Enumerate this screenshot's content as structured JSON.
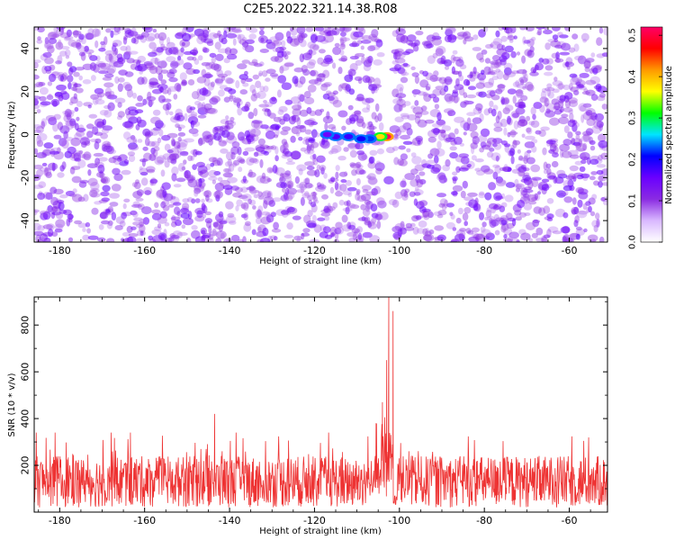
{
  "chart_data": [
    {
      "type": "heatmap",
      "title": "C2E5.2022.321.14.38.R08",
      "xlabel": "Height of straight line (km)",
      "ylabel": "Frequency (Hz)",
      "xlim": [
        -186,
        -51
      ],
      "ylim": [
        -50,
        50
      ],
      "xticks": [
        -180,
        -160,
        -140,
        -120,
        -100,
        -80,
        -60
      ],
      "yticks": [
        -40,
        -20,
        0,
        20,
        40
      ],
      "colorbar": {
        "label": "Normalized spectral amplitude",
        "range": [
          0.0,
          0.52
        ],
        "ticks": [
          0.0,
          0.1,
          0.2,
          0.3,
          0.4,
          0.5
        ],
        "colors": [
          "#ffffff",
          "#d9b8ff",
          "#8a2be2",
          "#6a00ff",
          "#0000ff",
          "#00e5ff",
          "#00ff00",
          "#ffff00",
          "#ff9900",
          "#ff0000",
          "#ff0066"
        ]
      },
      "gap_x_range": [
        -104,
        -101
      ],
      "hotspots": [
        {
          "x": -103,
          "y": -1,
          "value": 0.52
        },
        {
          "x": -104.5,
          "y": -1,
          "value": 0.38
        },
        {
          "x": -107,
          "y": -2,
          "value": 0.22
        },
        {
          "x": -109,
          "y": -2,
          "value": 0.2
        },
        {
          "x": -112,
          "y": -1,
          "value": 0.18
        },
        {
          "x": -115,
          "y": -1,
          "value": 0.17
        },
        {
          "x": -117,
          "y": 0,
          "value": 0.15
        }
      ],
      "background_amplitude": [
        0.0,
        0.1
      ]
    },
    {
      "type": "line",
      "title": "",
      "xlabel": "Height of straight line (km)",
      "ylabel": "SNR (10 * v/v)",
      "xlim": [
        -186,
        -51
      ],
      "ylim": [
        0,
        920
      ],
      "xticks": [
        -180,
        -160,
        -140,
        -120,
        -100,
        -80,
        -60
      ],
      "yticks": [
        200,
        400,
        600,
        800
      ],
      "series": [
        {
          "color": "#ee3333",
          "baseline": 130,
          "noise_range": [
            10,
            340
          ],
          "peaks": [
            {
              "x": -102.5,
              "y": 920
            },
            {
              "x": -101.5,
              "y": 860
            },
            {
              "x": -103.0,
              "y": 650
            },
            {
              "x": -104.0,
              "y": 470
            },
            {
              "x": -143.5,
              "y": 420
            },
            {
              "x": -105.5,
              "y": 380
            }
          ],
          "dip_x": -101
        }
      ]
    }
  ]
}
